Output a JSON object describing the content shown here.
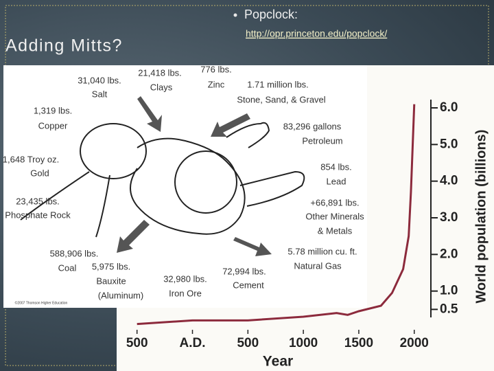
{
  "slide": {
    "title": "Adding Mitts?",
    "bullet": "Popclock:",
    "link": "http://opr.princeton.edu/popclock/"
  },
  "figure": {
    "labels": [
      "31,040 lbs.",
      "Salt",
      "21,418 lbs.",
      "Clays",
      "776 lbs.",
      "Zinc",
      "1.71 million lbs.",
      "Stone, Sand, & Gravel",
      "1,319 lbs.",
      "Copper",
      "83,296 gallons",
      "Petroleum",
      "1,648 Troy oz.",
      "Gold",
      "854 lbs.",
      "Lead",
      "23,435 lbs.",
      "Phosphate Rock",
      "+66,891 lbs.",
      "Other Minerals",
      "& Metals",
      "588,906 lbs.",
      "Coal",
      "5,975 lbs.",
      "Bauxite",
      "(Aluminum)",
      "32,980 lbs.",
      "Iron Ore",
      "5.78 million cu. ft.",
      "Natural Gas",
      "72,994 lbs.",
      "Cement"
    ],
    "credit": "©2007 Thomson Higher Education"
  },
  "chart_data": {
    "type": "line",
    "x_label": "Year",
    "y_label": "World population (billions)",
    "x": [
      -500,
      0,
      500,
      1000,
      1300,
      1400,
      1500,
      1700,
      1800,
      1900,
      1950,
      1970,
      1990,
      2000
    ],
    "series": [
      {
        "color": "#8c2a3c",
        "values": [
          0.1,
          0.2,
          0.2,
          0.3,
          0.4,
          0.35,
          0.45,
          0.6,
          0.95,
          1.6,
          2.5,
          3.7,
          5.3,
          6.1
        ]
      }
    ],
    "xlim": [
      -560,
      2150
    ],
    "ylim": [
      0,
      6.3
    ],
    "xticks": [
      {
        "value": -500,
        "label": "500"
      },
      {
        "value": 0,
        "label": "A.D."
      },
      500,
      1000,
      1500,
      2000
    ],
    "yticks": [
      {
        "value": 6,
        "label": "6.0"
      },
      {
        "value": 5,
        "label": "5.0"
      },
      {
        "value": 4,
        "label": "4.0"
      },
      {
        "value": 3,
        "label": "3.0"
      },
      {
        "value": 2,
        "label": "2.0"
      },
      {
        "value": 1,
        "label": "1.0"
      },
      0.5
    ]
  }
}
